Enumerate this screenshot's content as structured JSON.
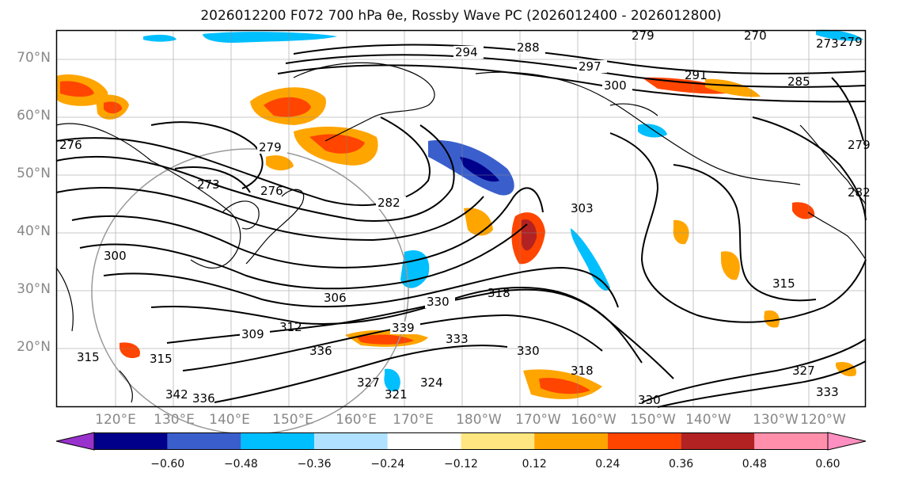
{
  "title": "2026012200 F072 700 hPa θe, Rossby Wave PC (2026012400 - 2026012800)",
  "lat_labels": [
    "70°N",
    "60°N",
    "50°N",
    "40°N",
    "30°N",
    "20°N"
  ],
  "lon_labels": [
    "120°E",
    "130°E",
    "140°E",
    "150°E",
    "160°E",
    "170°E",
    "180°W",
    "170°W",
    "160°W",
    "150°W",
    "140°W",
    "130°W",
    "120°W"
  ],
  "colorbar": {
    "ticks": [
      "−0.60",
      "−0.48",
      "−0.36",
      "−0.24",
      "−0.12",
      "0.12",
      "0.24",
      "0.36",
      "0.48",
      "0.60"
    ],
    "colors": [
      "#9932cc",
      "#00008b",
      "#3a5fcd",
      "#00bfff",
      "#b0e2ff",
      "#ffffff",
      "#ffe680",
      "#ffa500",
      "#ff4500",
      "#b22222",
      "#ff8fab",
      "#ff8fc0"
    ]
  },
  "contour_labels": [
    "279",
    "270",
    "273",
    "279",
    "294",
    "288",
    "297",
    "300",
    "291",
    "285",
    "276",
    "279",
    "273",
    "276",
    "282",
    "303",
    "279",
    "282",
    "300",
    "306",
    "309",
    "312",
    "315",
    "330",
    "318",
    "339",
    "333",
    "330",
    "336",
    "327",
    "324",
    "321",
    "336",
    "342",
    "315",
    "315",
    "318",
    "330",
    "327",
    "333"
  ]
}
